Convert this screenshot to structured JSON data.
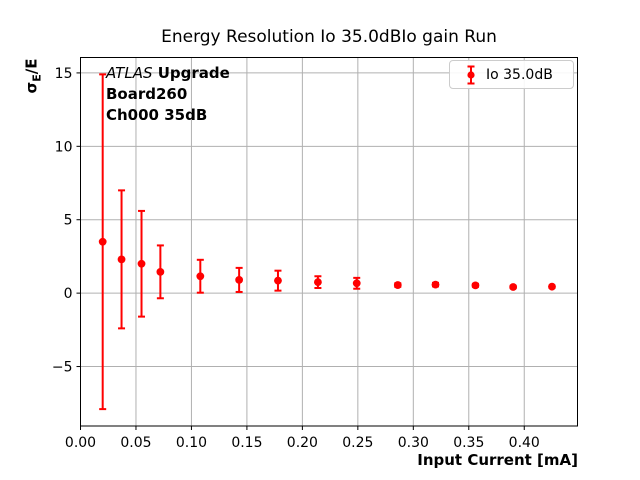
{
  "figure": {
    "annotation": {
      "line1_italic": "ATLAS",
      "line1_bold": " Upgrade",
      "line2": "Board260",
      "line3": "Ch000 35dB"
    },
    "colors": {
      "series": "#ff0000",
      "grid": "#b0b0b0",
      "axis": "#000000",
      "legend_border": "#cccccc",
      "background": "#ffffff"
    },
    "ylabel_parts": {
      "main": "σ",
      "sub": "E",
      "rest": "/E"
    }
  },
  "chart_data": {
    "type": "scatter",
    "title": "Energy Resolution Io 35.0dBIo gain Run",
    "xlabel": "Input Current [mA]",
    "ylabel": "σE/E",
    "grid": true,
    "legend_position": "upper right",
    "xlim": [
      0,
      0.448
    ],
    "ylim": [
      -9.05,
      16.05
    ],
    "x_ticks": [
      0.0,
      0.05,
      0.1,
      0.15,
      0.2,
      0.25,
      0.3,
      0.35,
      0.4
    ],
    "x_tick_labels": [
      "0.00",
      "0.05",
      "0.10",
      "0.15",
      "0.20",
      "0.25",
      "0.30",
      "0.35",
      "0.40"
    ],
    "y_ticks": [
      -5,
      0,
      5,
      10,
      15
    ],
    "y_tick_labels": [
      "−5",
      "0",
      "5",
      "10",
      "15"
    ],
    "series": [
      {
        "name": "Io 35.0dB",
        "color": "#ff0000",
        "x": [
          0.02,
          0.037,
          0.055,
          0.072,
          0.108,
          0.143,
          0.178,
          0.214,
          0.249,
          0.286,
          0.32,
          0.356,
          0.39,
          0.425
        ],
        "y": [
          3.5,
          2.3,
          2.0,
          1.45,
          1.15,
          0.9,
          0.85,
          0.75,
          0.67,
          0.55,
          0.58,
          0.53,
          0.42,
          0.44
        ],
        "yerr": [
          11.4,
          4.7,
          3.6,
          1.8,
          1.12,
          0.82,
          0.68,
          0.4,
          0.37,
          0.12,
          0.12,
          0.1,
          0.08,
          0.08
        ]
      }
    ]
  }
}
